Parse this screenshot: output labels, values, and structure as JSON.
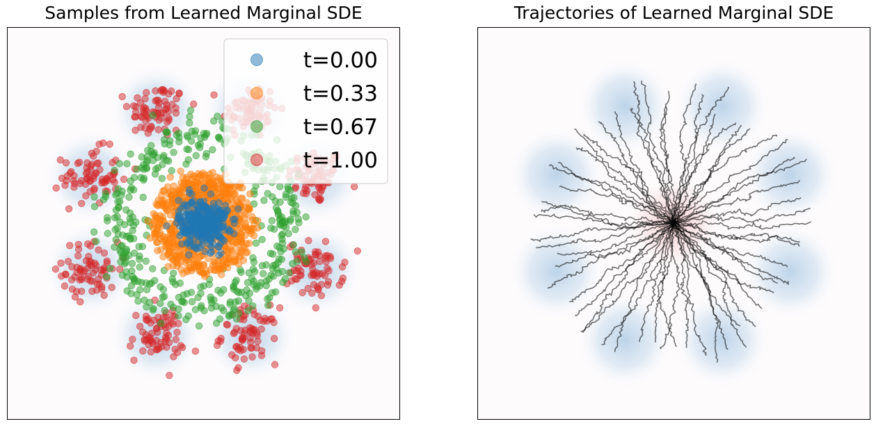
{
  "chart_data": [
    {
      "type": "scatter",
      "title": "Samples from Learned Marginal SDE",
      "xlabel": "",
      "ylabel": "",
      "axes_ticks": false,
      "legend": {
        "placement": "top-right",
        "entries": [
          {
            "label": "t=0.00",
            "color": "#1f77b4"
          },
          {
            "label": "t=0.33",
            "color": "#ff7f0e"
          },
          {
            "label": "t=0.67",
            "color": "#2ca02c"
          },
          {
            "label": "t=1.00",
            "color": "#d62728"
          }
        ]
      },
      "series": [
        {
          "t": 0.0,
          "color": "#1f77b4",
          "distribution": "gaussian",
          "center": [
            0,
            0
          ],
          "std": 0.35
        },
        {
          "t": 0.33,
          "color": "#ff7f0e",
          "distribution": "disk",
          "center": [
            0,
            0
          ],
          "radius": 1.45
        },
        {
          "t": 0.67,
          "color": "#2ca02c",
          "distribution": "ring",
          "center": [
            0,
            0
          ],
          "radius": 2.4,
          "width": 0.35
        },
        {
          "t": 1.0,
          "color": "#d62728",
          "distribution": "mixture of 8 gaussians on a circle",
          "center": [
            0,
            0
          ],
          "radius": 3.5,
          "std": 0.4
        }
      ],
      "background_density": {
        "mixture_components": 8,
        "ring_radius": 3.5,
        "color": "#b6cfe6"
      },
      "xlim": [
        -5,
        5
      ],
      "ylim": [
        -5,
        5
      ]
    },
    {
      "type": "line",
      "title": "Trajectories of Learned Marginal SDE",
      "xlabel": "",
      "ylabel": "",
      "axes_ticks": false,
      "line_color": "#000000",
      "description_of_marks": "stochastic trajectories from origin to points on a ring of 8 mixture components",
      "n_trajectories": 60,
      "start": [
        0,
        0
      ],
      "end_ring_radius": 3.6,
      "background_density": {
        "mixture_components": 8,
        "ring_radius": 3.5,
        "center_blob_color": "#f4cccc",
        "ring_color": "#b6cfe6"
      },
      "xlim": [
        -5,
        5
      ],
      "ylim": [
        -5,
        5
      ]
    }
  ]
}
